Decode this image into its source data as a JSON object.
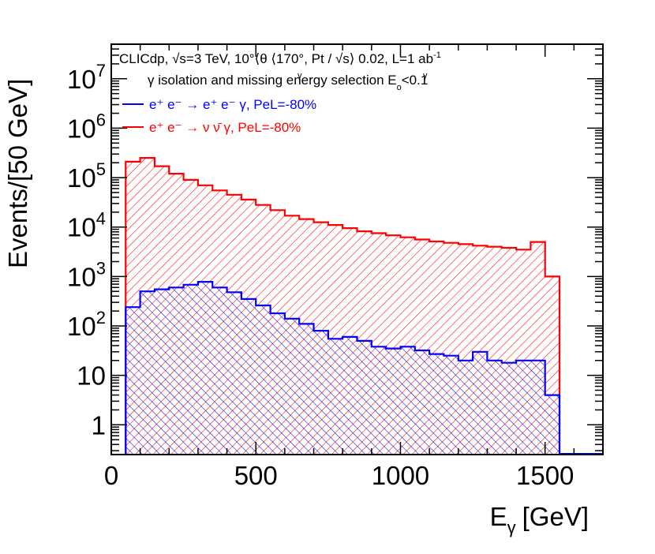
{
  "chart_data": {
    "type": "histogram",
    "scale_y": "log",
    "xlim": [
      0,
      1700
    ],
    "ylim": [
      0.25,
      50000000
    ],
    "bin_width_gev": 50,
    "xlabel": "E",
    "xlabel_sub": "γ",
    "xlabel_unit": "[GeV]",
    "ylabel": "Events/[50 GeV]",
    "x_ticks": [
      0,
      500,
      1000,
      1500
    ],
    "y_tick_labels": [
      {
        "value": 1,
        "base": "1",
        "exp": ""
      },
      {
        "value": 10,
        "base": "10",
        "exp": ""
      },
      {
        "value": 100,
        "base": "10",
        "exp": "2"
      },
      {
        "value": 1000,
        "base": "10",
        "exp": "3"
      },
      {
        "value": 10000,
        "base": "10",
        "exp": "4"
      },
      {
        "value": 100000,
        "base": "10",
        "exp": "5"
      },
      {
        "value": 1000000,
        "base": "10",
        "exp": "6"
      },
      {
        "value": 10000000,
        "base": "10",
        "exp": "7"
      }
    ],
    "header": {
      "line1": "CLICdp, √s=3 TeV, 10°⟨θ  ⟨170°,  Pt  / √s⟩ 0.02, L=1 ab",
      "line1_sup": "-1",
      "theta_sub": "γ",
      "pt_sub": "γ",
      "line2": "γ isolation and missing energy selection E",
      "line2_sub": "o",
      "line2_tail": "<0.1"
    },
    "series": [
      {
        "name": "e+ e- → ν ν̄ γ, PeL=-80%",
        "legend": "e⁺ e⁻ → ν ν̄ γ, PeL=-80%",
        "color": "#ff0000",
        "hatch": "forward",
        "bin_edges": [
          50,
          100,
          150,
          200,
          250,
          300,
          350,
          400,
          450,
          500,
          550,
          600,
          650,
          700,
          750,
          800,
          850,
          900,
          950,
          1000,
          1050,
          1100,
          1150,
          1200,
          1250,
          1300,
          1350,
          1400,
          1450,
          1500,
          1550
        ],
        "values": [
          210000,
          250000,
          170000,
          120000,
          90000,
          70000,
          55000,
          45000,
          36000,
          28000,
          22000,
          17000,
          14500,
          12500,
          11000,
          9500,
          8200,
          7500,
          6800,
          6200,
          5600,
          5100,
          4800,
          4500,
          4200,
          4000,
          3800,
          3500,
          5000,
          1000
        ]
      },
      {
        "name": "e+ e- → e+ e- γ, PeL=-80%",
        "legend": "e⁺ e⁻ → e⁺ e⁻ γ, PeL=-80%",
        "color": "#0000ff",
        "hatch": "backward",
        "bin_edges": [
          50,
          100,
          150,
          200,
          250,
          300,
          350,
          400,
          450,
          500,
          550,
          600,
          650,
          700,
          750,
          800,
          850,
          900,
          950,
          1000,
          1050,
          1100,
          1150,
          1200,
          1250,
          1300,
          1350,
          1400,
          1450,
          1500,
          1550
        ],
        "values": [
          240,
          500,
          550,
          600,
          680,
          780,
          600,
          480,
          350,
          260,
          180,
          140,
          110,
          80,
          55,
          60,
          50,
          38,
          35,
          38,
          32,
          27,
          25,
          20,
          30,
          20,
          18,
          20,
          20,
          4
        ]
      }
    ]
  }
}
